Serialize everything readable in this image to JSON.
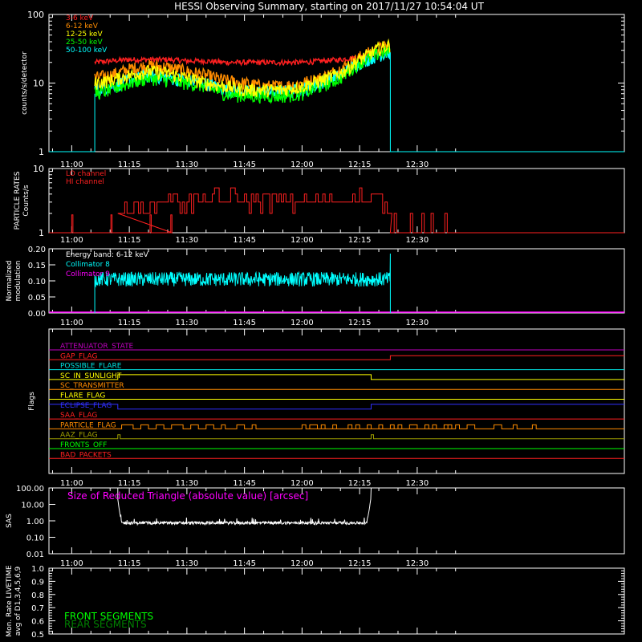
{
  "title": "HESSI Observing Summary, starting on 2017/11/27 10:54:04 UT",
  "time_ticks": [
    "11:00",
    "11:15",
    "11:30",
    "11:45",
    "12:00",
    "12:15",
    "12:30"
  ],
  "chart_data": [
    {
      "id": "count-rates",
      "type": "line",
      "ylabel": "counts/s/detector",
      "yscale": "log",
      "ylim": [
        1,
        100
      ],
      "ytick_labels": [
        "1",
        "10",
        "100"
      ],
      "start_time": "11:06",
      "end_time": "12:23",
      "x": [
        "11:06",
        "11:10",
        "11:15",
        "11:20",
        "11:25",
        "11:30",
        "11:35",
        "11:40",
        "11:45",
        "11:50",
        "11:55",
        "12:00",
        "12:05",
        "12:10",
        "12:15",
        "12:20",
        "12:23"
      ],
      "series": [
        {
          "name": "3-6 keV",
          "color": "#ff2020",
          "values": [
            20,
            21,
            22,
            22,
            22,
            21,
            21,
            20,
            20,
            20,
            20,
            20,
            21,
            22,
            24,
            28,
            30
          ]
        },
        {
          "name": "6-12 keV",
          "color": "#ff8c00",
          "values": [
            12,
            13,
            16,
            18,
            17,
            15,
            13,
            11,
            10,
            9,
            9,
            10,
            12,
            16,
            24,
            32,
            35
          ]
        },
        {
          "name": "12-25 keV",
          "color": "#ffff00",
          "values": [
            10,
            11,
            13,
            15,
            14,
            12,
            10,
            9,
            8,
            8,
            8,
            9,
            11,
            14,
            22,
            32,
            36
          ]
        },
        {
          "name": "25-50 keV",
          "color": "#00ff00",
          "values": [
            7,
            8,
            10,
            12,
            11,
            10,
            9,
            7,
            6.5,
            6.5,
            6.5,
            7,
            9,
            12,
            20,
            27,
            30
          ]
        },
        {
          "name": "50-100 keV",
          "color": "#00ffff",
          "values": [
            8,
            9,
            11,
            13,
            12,
            11,
            10,
            8,
            7.5,
            7.5,
            7.5,
            8,
            10,
            13,
            20,
            26,
            28
          ]
        }
      ]
    },
    {
      "id": "particle-rates",
      "type": "line",
      "ylabel": "PARTICLE RATES",
      "ylabel2": "Counts/s",
      "yscale": "log",
      "ylim": [
        1,
        10
      ],
      "ytick_labels": [
        "1",
        "10"
      ],
      "series": [
        {
          "name": "LO channel",
          "color": "#ff2020"
        },
        {
          "name": "HI channel",
          "color": "#ff2020",
          "x": [
            "11:12",
            "11:20",
            "11:30",
            "11:40",
            "11:50",
            "12:00",
            "12:10",
            "12:15",
            "12:20",
            "12:25"
          ],
          "values": [
            2,
            2.5,
            3,
            3.5,
            2.8,
            2.6,
            3,
            3.5,
            3,
            1
          ]
        }
      ]
    },
    {
      "id": "modulation",
      "type": "line",
      "ylabel": "Normalized",
      "ylabel2": "modulation",
      "ylim": [
        0,
        0.2
      ],
      "ytick_labels": [
        "0.00",
        "0.05",
        "0.10",
        "0.15",
        "0.20"
      ],
      "annotation": "Energy band: 6-12 keV",
      "series": [
        {
          "name": "Collimator 8",
          "color": "#00ffff",
          "mean": 0.11
        },
        {
          "name": "Collimator 9",
          "color": "#ff00ff",
          "mean": 0.0
        }
      ]
    },
    {
      "id": "flags",
      "type": "line",
      "ylabel": "Flags",
      "flags": [
        {
          "name": "ATTENUATOR_STATE",
          "color": "#c000c0"
        },
        {
          "name": "GAP_FLAG",
          "color": "#ff2020"
        },
        {
          "name": "POSSIBLE_FLARE",
          "color": "#00e0e0"
        },
        {
          "name": "SC_IN_SUNLIGHT",
          "color": "#ffff00"
        },
        {
          "name": "SC_TRANSMITTER",
          "color": "#ff8c00"
        },
        {
          "name": "FLARE_FLAG",
          "color": "#ffff00"
        },
        {
          "name": "ECLIPSE_FLAG",
          "color": "#3030ff"
        },
        {
          "name": "SAA_FLAG",
          "color": "#ff2020"
        },
        {
          "name": "PARTICLE_FLAG",
          "color": "#ff8c00"
        },
        {
          "name": "AAZ_FLAG",
          "color": "#a0a000"
        },
        {
          "name": "FRONTS_OFF",
          "color": "#00ff00"
        },
        {
          "name": "BAD_PACKETS",
          "color": "#ff2020"
        }
      ]
    },
    {
      "id": "sas",
      "type": "line",
      "ylabel": "SAS",
      "yscale": "log",
      "ylim": [
        0.01,
        100
      ],
      "ytick_labels": [
        "100.00",
        "10.00",
        "1.00",
        "0.10",
        "0.01"
      ],
      "annotation": "Size of Reduced Triangle (absolute value) [arcsec]",
      "series": [
        {
          "name": "",
          "color": "#ffffff",
          "mean": 0.8
        }
      ]
    },
    {
      "id": "livetime",
      "type": "line",
      "ylabel": "Mon. Rate LIVETIME",
      "ylabel2": "avg of D1,3,4,5,6,9",
      "ylim": [
        0.5,
        1.0
      ],
      "ytick_labels": [
        "0.5",
        "0.6",
        "0.7",
        "0.8",
        "0.9",
        "1.0"
      ],
      "series": [
        {
          "name": "FRONT SEGMENTS",
          "color": "#00ff00"
        },
        {
          "name": "REAR SEGMENTS",
          "color": "#008000"
        }
      ]
    }
  ]
}
